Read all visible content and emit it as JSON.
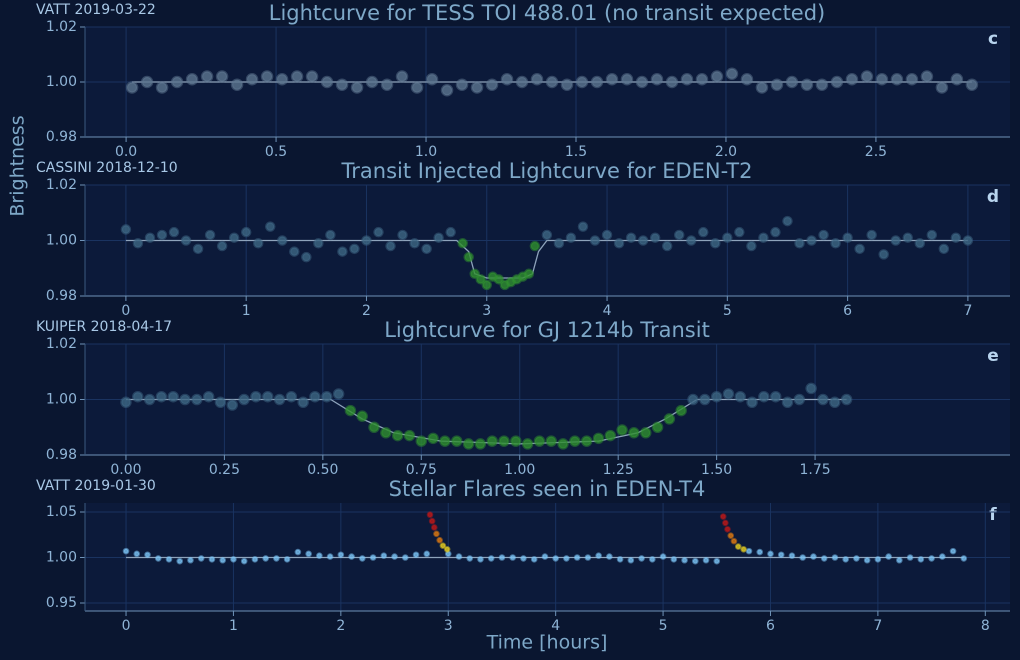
{
  "figure": {
    "ylabel": "Brightness",
    "xlabel": "Time [hours]"
  },
  "chart_data": [
    {
      "type": "scatter",
      "title": "Lightcurve for TESS TOI 488.01 (no transit expected)",
      "label": "VATT 2019-03-22",
      "panel": "c",
      "grid": true,
      "xlim": [
        -0.137,
        2.947
      ],
      "ylim": [
        0.98,
        1.02
      ],
      "xticks": [
        {
          "value": 0,
          "label": "0.0"
        },
        0.5,
        {
          "value": 1,
          "label": "1.0"
        },
        1.5,
        {
          "value": 2,
          "label": "2.0"
        },
        2.5
      ],
      "yticks": [
        0.98,
        {
          "value": 1,
          "label": "1.00"
        },
        1.02
      ],
      "model": {
        "color": "#8ea3bb",
        "x": [
          0.02,
          2.82
        ],
        "values": [
          1,
          1
        ]
      },
      "series": [
        {
          "color": "#5d7590",
          "x": [
            0.02,
            0.07,
            0.12,
            0.17,
            0.22,
            0.27,
            0.32,
            0.37,
            0.42,
            0.47,
            0.52,
            0.57,
            0.62,
            0.67,
            0.72,
            0.77,
            0.82,
            0.87,
            0.92,
            0.97,
            1.02,
            1.07,
            1.12,
            1.17,
            1.22,
            1.27,
            1.32,
            1.37,
            1.42,
            1.47,
            1.52,
            1.57,
            1.62,
            1.67,
            1.72,
            1.77,
            1.82,
            1.87,
            1.92,
            1.97,
            2.02,
            2.07,
            2.12,
            2.17,
            2.22,
            2.27,
            2.32,
            2.37,
            2.42,
            2.47,
            2.52,
            2.57,
            2.62,
            2.67,
            2.72,
            2.77,
            2.82
          ],
          "values": [
            0.998,
            1.0,
            0.998,
            1.0,
            1.001,
            1.002,
            1.002,
            0.999,
            1.001,
            1.002,
            1.001,
            1.002,
            1.002,
            1.0,
            0.999,
            0.998,
            1.0,
            0.999,
            1.002,
            0.998,
            1.001,
            0.997,
            0.999,
            0.998,
            0.999,
            1.001,
            1.0,
            1.001,
            1.0,
            0.999,
            1.0,
            1.0,
            1.001,
            1.001,
            1.0,
            1.001,
            1.0,
            1.001,
            1.001,
            1.002,
            1.003,
            1.001,
            0.998,
            0.999,
            1.0,
            0.999,
            0.999,
            1.0,
            1.001,
            1.002,
            1.001,
            1.001,
            1.001,
            1.002,
            0.998,
            1.001,
            0.999
          ]
        }
      ]
    },
    {
      "type": "scatter",
      "title": "Transit Injected Lightcurve for EDEN-T2",
      "label": "CASSINI 2018-12-10",
      "panel": "d",
      "grid": true,
      "xlim": [
        -0.34,
        7.35
      ],
      "ylim": [
        0.98,
        1.02
      ],
      "xticks": [
        0,
        1,
        2,
        3,
        4,
        5,
        6,
        7
      ],
      "yticks": [
        0.98,
        {
          "value": 1,
          "label": "1.00"
        },
        1.02
      ],
      "model": {
        "color": "#8ea3bb",
        "x": [
          0,
          2.75,
          2.85,
          2.9,
          3.0,
          3.3,
          3.38,
          3.43,
          3.5,
          7
        ],
        "values": [
          1,
          1,
          0.996,
          0.988,
          0.9865,
          0.9865,
          0.988,
          0.996,
          1,
          1
        ]
      },
      "series": [
        {
          "color": "#3d6683",
          "x": [
            0.0,
            0.1,
            0.2,
            0.3,
            0.4,
            0.5,
            0.6,
            0.7,
            0.8,
            0.9,
            1.0,
            1.1,
            1.2,
            1.3,
            1.4,
            1.5,
            1.6,
            1.7,
            1.8,
            1.9,
            2.0,
            2.1,
            2.2,
            2.3,
            2.4,
            2.5,
            2.6,
            2.7,
            3.5,
            3.6,
            3.7,
            3.8,
            3.9,
            4.0,
            4.1,
            4.2,
            4.3,
            4.4,
            4.5,
            4.6,
            4.7,
            4.8,
            4.9,
            5.0,
            5.1,
            5.2,
            5.3,
            5.4,
            5.5,
            5.6,
            5.7,
            5.8,
            5.9,
            6.0,
            6.1,
            6.2,
            6.3,
            6.4,
            6.5,
            6.6,
            6.7,
            6.8,
            6.9,
            7.0
          ],
          "values": [
            1.004,
            0.999,
            1.001,
            1.002,
            1.003,
            1.0,
            0.997,
            1.002,
            0.998,
            1.001,
            1.003,
            0.999,
            1.005,
            1.0,
            0.996,
            0.994,
            0.999,
            1.002,
            0.996,
            0.997,
            1.0,
            1.003,
            0.998,
            1.002,
            0.999,
            0.997,
            1.001,
            1.003,
            1.002,
            0.999,
            1.001,
            1.005,
            1.0,
            1.002,
            0.999,
            1.001,
            1.0,
            1.001,
            0.998,
            1.002,
            1.0,
            1.003,
            0.999,
            1.001,
            1.003,
            0.998,
            1.001,
            1.003,
            1.007,
            0.999,
            1.0,
            1.002,
            0.999,
            1.001,
            0.997,
            1.002,
            0.995,
            1.0,
            1.001,
            0.999,
            1.002,
            0.997,
            1.001,
            1.0
          ]
        },
        {
          "color": "#2f8f2f",
          "x": [
            2.8,
            2.85,
            2.9,
            2.95,
            3.0,
            3.05,
            3.1,
            3.15,
            3.2,
            3.25,
            3.3,
            3.35,
            3.4
          ],
          "values": [
            0.999,
            0.994,
            0.988,
            0.986,
            0.984,
            0.987,
            0.986,
            0.984,
            0.985,
            0.986,
            0.987,
            0.988,
            0.998
          ]
        }
      ]
    },
    {
      "type": "scatter",
      "title": "Lightcurve for GJ 1214b Transit",
      "label": "KUIPER 2018-04-17",
      "panel": "e",
      "grid": true,
      "xlim": [
        -0.104,
        2.245
      ],
      "ylim": [
        0.98,
        1.02
      ],
      "xticks": [
        {
          "value": 0,
          "label": "0.00"
        },
        0.25,
        {
          "value": 0.5,
          "label": "0.50"
        },
        0.75,
        {
          "value": 1,
          "label": "1.00"
        },
        1.25,
        {
          "value": 1.5,
          "label": "1.50"
        },
        1.75
      ],
      "yticks": [
        0.98,
        {
          "value": 1,
          "label": "1.00"
        },
        1.02
      ],
      "model": {
        "color": "#8ea3bb",
        "x": [
          0,
          0.52,
          0.6,
          0.68,
          0.8,
          1.0,
          1.2,
          1.3,
          1.37,
          1.45,
          1.83
        ],
        "values": [
          1,
          1,
          0.993,
          0.988,
          0.985,
          0.984,
          0.985,
          0.988,
          0.993,
          1,
          1
        ]
      },
      "series": [
        {
          "color": "#3d6683",
          "x": [
            0.0,
            0.03,
            0.06,
            0.09,
            0.12,
            0.15,
            0.18,
            0.21,
            0.24,
            0.27,
            0.3,
            0.33,
            0.36,
            0.39,
            0.42,
            0.45,
            0.48,
            0.51,
            0.54,
            1.44,
            1.47,
            1.5,
            1.53,
            1.56,
            1.59,
            1.62,
            1.65,
            1.68,
            1.71,
            1.74,
            1.77,
            1.8,
            1.83
          ],
          "values": [
            0.999,
            1.001,
            1.0,
            1.001,
            1.001,
            1.0,
            1.0,
            1.001,
            0.999,
            0.998,
            1.0,
            1.001,
            1.001,
            1.0,
            1.001,
            0.999,
            1.001,
            1.001,
            1.002,
            1.0,
            1.0,
            1.001,
            1.002,
            1.001,
            0.999,
            1.001,
            1.001,
            0.999,
            1.0,
            1.004,
            1.0,
            0.999,
            1.0
          ]
        },
        {
          "color": "#2f8f2f",
          "x": [
            0.57,
            0.6,
            0.63,
            0.66,
            0.69,
            0.72,
            0.75,
            0.78,
            0.81,
            0.84,
            0.87,
            0.9,
            0.93,
            0.96,
            0.99,
            1.02,
            1.05,
            1.08,
            1.11,
            1.14,
            1.17,
            1.2,
            1.23,
            1.26,
            1.29,
            1.32,
            1.35,
            1.38,
            1.41
          ],
          "values": [
            0.996,
            0.994,
            0.99,
            0.988,
            0.987,
            0.987,
            0.985,
            0.986,
            0.985,
            0.985,
            0.984,
            0.984,
            0.985,
            0.985,
            0.985,
            0.984,
            0.985,
            0.985,
            0.984,
            0.985,
            0.985,
            0.986,
            0.987,
            0.989,
            0.988,
            0.988,
            0.99,
            0.993,
            0.996
          ]
        }
      ]
    },
    {
      "type": "scatter",
      "title": "Stellar Flares seen in EDEN-T4",
      "label": "VATT 2019-01-30",
      "panel": "f",
      "grid": true,
      "xlim": [
        -0.382,
        8.23
      ],
      "ylim": [
        0.9412,
        1.0599
      ],
      "xticks": [
        0,
        1,
        2,
        3,
        4,
        5,
        6,
        7,
        8
      ],
      "yticks": [
        0.95,
        {
          "value": 1,
          "label": "1.00"
        },
        1.05
      ],
      "model": {
        "color": "#8ea3bb",
        "x": [
          0,
          7.8
        ],
        "values": [
          1,
          1
        ]
      },
      "series": [
        {
          "color": "#7cc4f5",
          "x": [
            0.0,
            0.1,
            0.2,
            0.3,
            0.4,
            0.5,
            0.6,
            0.7,
            0.8,
            0.9,
            1.0,
            1.1,
            1.2,
            1.3,
            1.4,
            1.5,
            1.6,
            1.7,
            1.8,
            1.9,
            2.0,
            2.1,
            2.2,
            2.3,
            2.4,
            2.5,
            2.6,
            2.7,
            2.8,
            3.0,
            3.1,
            3.2,
            3.3,
            3.4,
            3.5,
            3.6,
            3.7,
            3.8,
            3.9,
            4.0,
            4.1,
            4.2,
            4.3,
            4.4,
            4.5,
            4.6,
            4.7,
            4.8,
            4.9,
            5.0,
            5.1,
            5.2,
            5.3,
            5.4,
            5.5,
            5.8,
            5.9,
            6.0,
            6.1,
            6.2,
            6.3,
            6.4,
            6.5,
            6.6,
            6.7,
            6.8,
            6.9,
            7.0,
            7.1,
            7.2,
            7.3,
            7.4,
            7.5,
            7.6,
            7.7,
            7.8
          ],
          "values": [
            1.007,
            1.004,
            1.003,
            0.999,
            0.998,
            0.996,
            0.997,
            0.999,
            0.998,
            0.997,
            0.998,
            0.996,
            0.998,
            0.999,
            0.999,
            0.998,
            1.006,
            1.004,
            1.002,
            1.001,
            1.003,
            1.001,
            0.999,
            1.0,
            1.002,
            1.001,
            1.0,
            1.003,
            1.004,
            1.004,
            1.001,
            0.999,
            0.998,
            0.999,
            1.0,
            1.0,
            0.999,
            0.998,
            1.001,
            0.999,
            0.999,
            1.0,
            1.0,
            1.002,
            1.001,
            0.998,
            0.997,
            0.999,
            0.998,
            1.001,
            0.998,
            0.997,
            0.996,
            0.997,
            0.996,
            1.007,
            1.006,
            1.004,
            1.003,
            1.002,
            1.0,
            1.001,
            0.999,
            1.0,
            0.998,
            0.999,
            0.997,
            0.998,
            1.001,
            0.997,
            1.0,
            0.998,
            0.999,
            1.001,
            1.007,
            0.999
          ]
        },
        {
          "color": "#c01818",
          "x": [
            2.83,
            2.85,
            2.87,
            5.56,
            5.58,
            5.6
          ],
          "values": [
            1.047,
            1.04,
            1.033,
            1.045,
            1.038,
            1.031
          ]
        },
        {
          "color": "#e07a10",
          "x": [
            2.89,
            2.92,
            5.63,
            5.66
          ],
          "values": [
            1.026,
            1.019,
            1.024,
            1.018
          ]
        },
        {
          "color": "#e8d020",
          "x": [
            2.95,
            2.99,
            5.7,
            5.75
          ],
          "values": [
            1.013,
            1.009,
            1.012,
            1.009
          ]
        }
      ]
    }
  ]
}
